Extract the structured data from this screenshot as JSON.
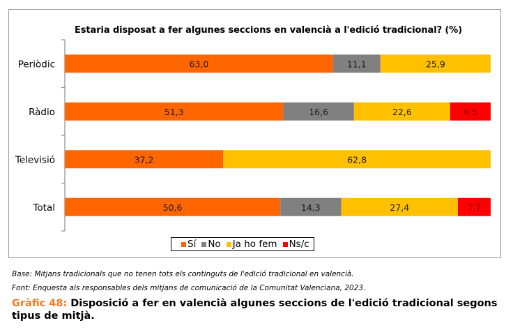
{
  "chart_data": {
    "type": "bar",
    "orientation": "horizontal",
    "stacked": true,
    "title": "Estaria disposat a fer algunes seccions en valencià a l'edició tradicional? (%)",
    "xlabel": "",
    "ylabel": "",
    "xlim": [
      0,
      100
    ],
    "grid": false,
    "legend_position": "bottom",
    "categories": [
      "Periòdic",
      "Ràdio",
      "Televisió",
      "Total"
    ],
    "series": [
      {
        "name": "Sí",
        "color": "#ff6600",
        "values": [
          63.0,
          51.3,
          37.2,
          50.6
        ],
        "labels": [
          "63,0",
          "51,3",
          "37,2",
          "50,6"
        ]
      },
      {
        "name": "No",
        "color": "#808080",
        "values": [
          11.1,
          16.6,
          0,
          14.3
        ],
        "labels": [
          "11,1",
          "16,6",
          "",
          "14,3"
        ]
      },
      {
        "name": "Ja ho fem",
        "color": "#ffc000",
        "values": [
          25.9,
          22.6,
          62.8,
          27.4
        ],
        "labels": [
          "25,9",
          "22,6",
          "62,8",
          "27,4"
        ]
      },
      {
        "name": "Ns/c",
        "color": "#ff0000",
        "values": [
          0,
          9.5,
          0,
          7.7
        ],
        "labels": [
          "",
          "9,5",
          "",
          "7,7"
        ]
      }
    ]
  },
  "notes": {
    "base": "Base: Mitjans tradicionals que no tenen tots els continguts de l'edició tradicional en valencià.",
    "source": "Font: Enquesta als responsables dels mitjans de comunicació de la Comunitat Valenciana, 2023."
  },
  "caption": {
    "label": "Gràfic 48:",
    "text": " Disposició a fer en valencià algunes seccions de l'edició tradicional segons tipus de mitjà."
  }
}
